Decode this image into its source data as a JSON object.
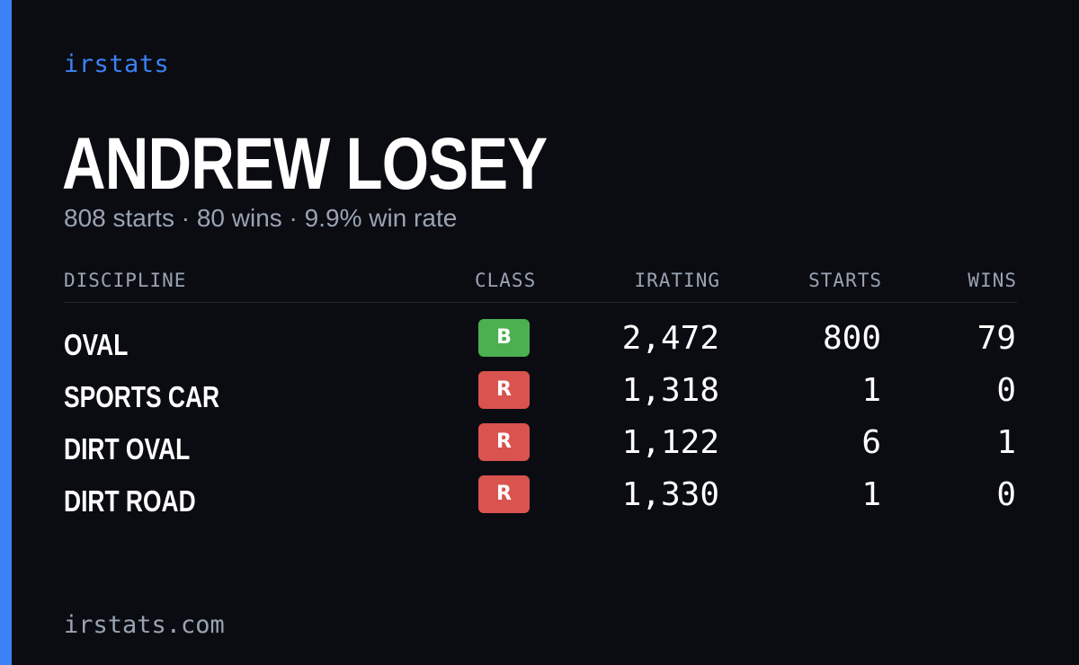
{
  "brand": "irstats",
  "player": {
    "name": "ANDREW LOSEY",
    "summary": "808 starts · 80 wins · 9.9% win rate"
  },
  "table": {
    "headers": {
      "discipline": "DISCIPLINE",
      "class": "CLASS",
      "irating": "IRATING",
      "starts": "STARTS",
      "wins": "WINS"
    },
    "rows": [
      {
        "discipline": "OVAL",
        "class": "B",
        "class_color": "#4caf50",
        "irating": "2,472",
        "starts": "800",
        "wins": "79"
      },
      {
        "discipline": "SPORTS CAR",
        "class": "R",
        "class_color": "#d9534f",
        "irating": "1,318",
        "starts": "1",
        "wins": "0"
      },
      {
        "discipline": "DIRT OVAL",
        "class": "R",
        "class_color": "#d9534f",
        "irating": "1,122",
        "starts": "6",
        "wins": "1"
      },
      {
        "discipline": "DIRT ROAD",
        "class": "R",
        "class_color": "#d9534f",
        "irating": "1,330",
        "starts": "1",
        "wins": "0"
      }
    ]
  },
  "footer": "irstats.com",
  "colors": {
    "accent": "#3b82f6",
    "background": "#0a0c12",
    "muted_text": "#9aa3b2"
  }
}
